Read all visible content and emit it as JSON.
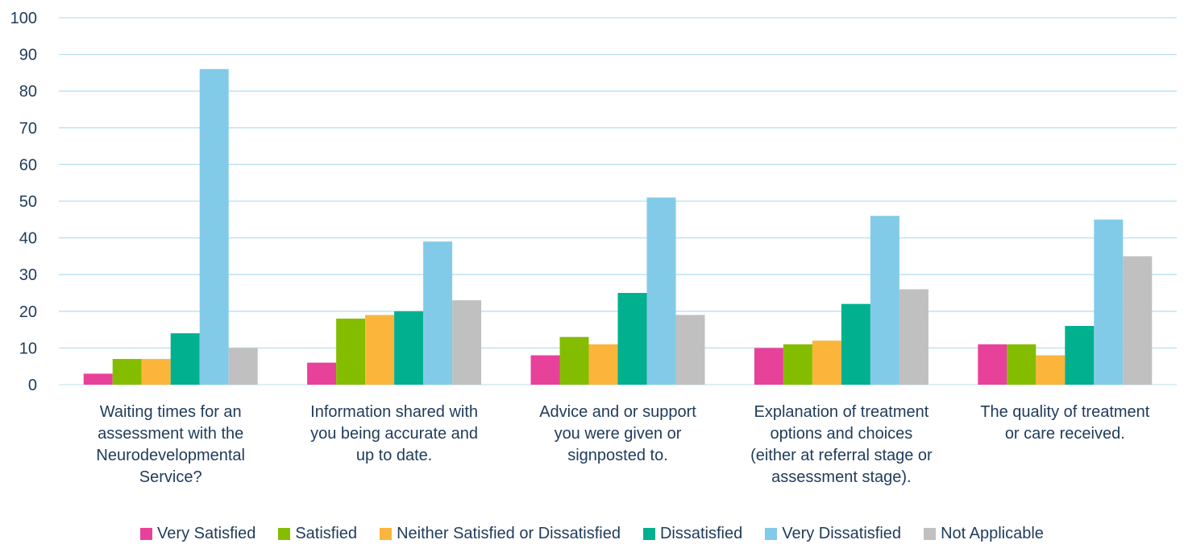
{
  "chart_data": {
    "type": "bar",
    "ylim": [
      0,
      100
    ],
    "yticks": [
      "0",
      "10",
      "20",
      "30",
      "40",
      "50",
      "60",
      "70",
      "80",
      "90",
      "100"
    ],
    "grid": true,
    "legend_position": "bottom",
    "categories": [
      "Waiting times for an assessment with the Neurodevelopmental Service?",
      "Information shared with you being accurate and up to date.",
      "Advice and or support you were given or signposted to.",
      "Explanation of treatment options and choices (either at referral stage or assessment stage).",
      "The quality of treatment or care received."
    ],
    "category_lines": [
      "Waiting times for an\nassessment with the\nNeurodevelopmental\nService?",
      "Information shared with\nyou being accurate and\nup to date.",
      "Advice and or support\nyou were given or\nsignposted to.",
      "Explanation of treatment\noptions and choices\n(either at referral stage or\nassessment stage).",
      "The quality of treatment\nor care received."
    ],
    "series": [
      {
        "name": "Very Satisfied",
        "color": "#e8419a",
        "values": [
          3,
          6,
          8,
          10,
          11
        ]
      },
      {
        "name": "Satisfied",
        "color": "#84bd00",
        "values": [
          7,
          18,
          13,
          11,
          11
        ]
      },
      {
        "name": "Neither Satisfied or Dissatisfied",
        "color": "#fbb53b",
        "values": [
          7,
          19,
          11,
          12,
          8
        ]
      },
      {
        "name": "Dissatisfied",
        "color": "#00b08f",
        "values": [
          14,
          20,
          25,
          22,
          16
        ]
      },
      {
        "name": "Very Dissatisfied",
        "color": "#82cbe8",
        "values": [
          86,
          39,
          51,
          46,
          45
        ]
      },
      {
        "name": "Not Applicable",
        "color": "#c0c0c0",
        "values": [
          10,
          23,
          19,
          26,
          35
        ]
      }
    ],
    "gridline_color": "#b7e0f0",
    "axis_color": "#c8e6f3"
  }
}
